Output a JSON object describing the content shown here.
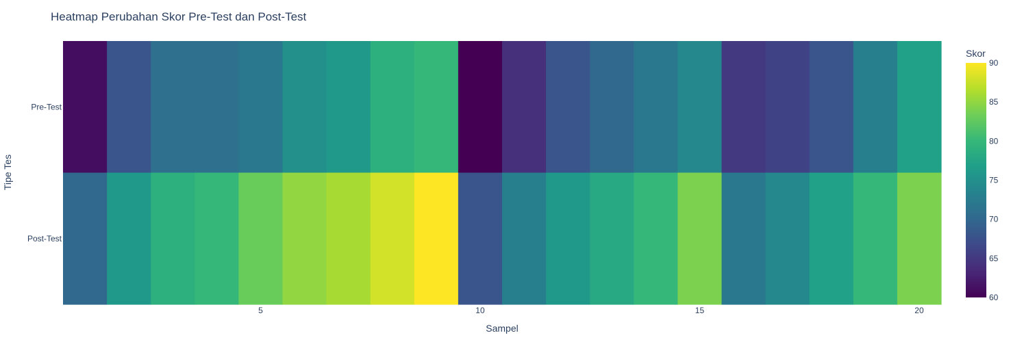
{
  "chart_data": {
    "type": "heatmap",
    "title": "Heatmap Perubahan Skor Pre-Test dan Post-Test",
    "xlabel": "Sampel",
    "ylabel": "Tipe Tes",
    "x": [
      1,
      2,
      3,
      4,
      5,
      6,
      7,
      8,
      9,
      10,
      11,
      12,
      13,
      14,
      15,
      16,
      17,
      18,
      19,
      20
    ],
    "x_ticks": [
      5,
      10,
      15,
      20
    ],
    "rows": [
      "Pre-Test",
      "Post-Test"
    ],
    "values": [
      [
        61,
        68,
        71,
        71,
        72,
        75,
        76,
        79,
        80,
        60,
        64,
        68,
        70,
        72,
        74,
        65,
        66,
        68,
        73,
        77
      ],
      [
        70,
        76,
        79,
        80,
        83,
        85,
        86,
        88,
        90,
        68,
        73,
        76,
        78,
        80,
        84,
        72,
        74,
        77,
        80,
        84
      ]
    ],
    "colorbar": {
      "title": "Skor",
      "min": 60,
      "max": 90,
      "ticks": [
        60,
        65,
        70,
        75,
        80,
        85,
        90
      ],
      "colorscale": "Viridis"
    },
    "colors": [
      "#440154",
      "#482878",
      "#3e4989",
      "#31688e",
      "#26828e",
      "#1f9e89",
      "#35b779",
      "#6ece58",
      "#b5de2b",
      "#fde725"
    ]
  }
}
